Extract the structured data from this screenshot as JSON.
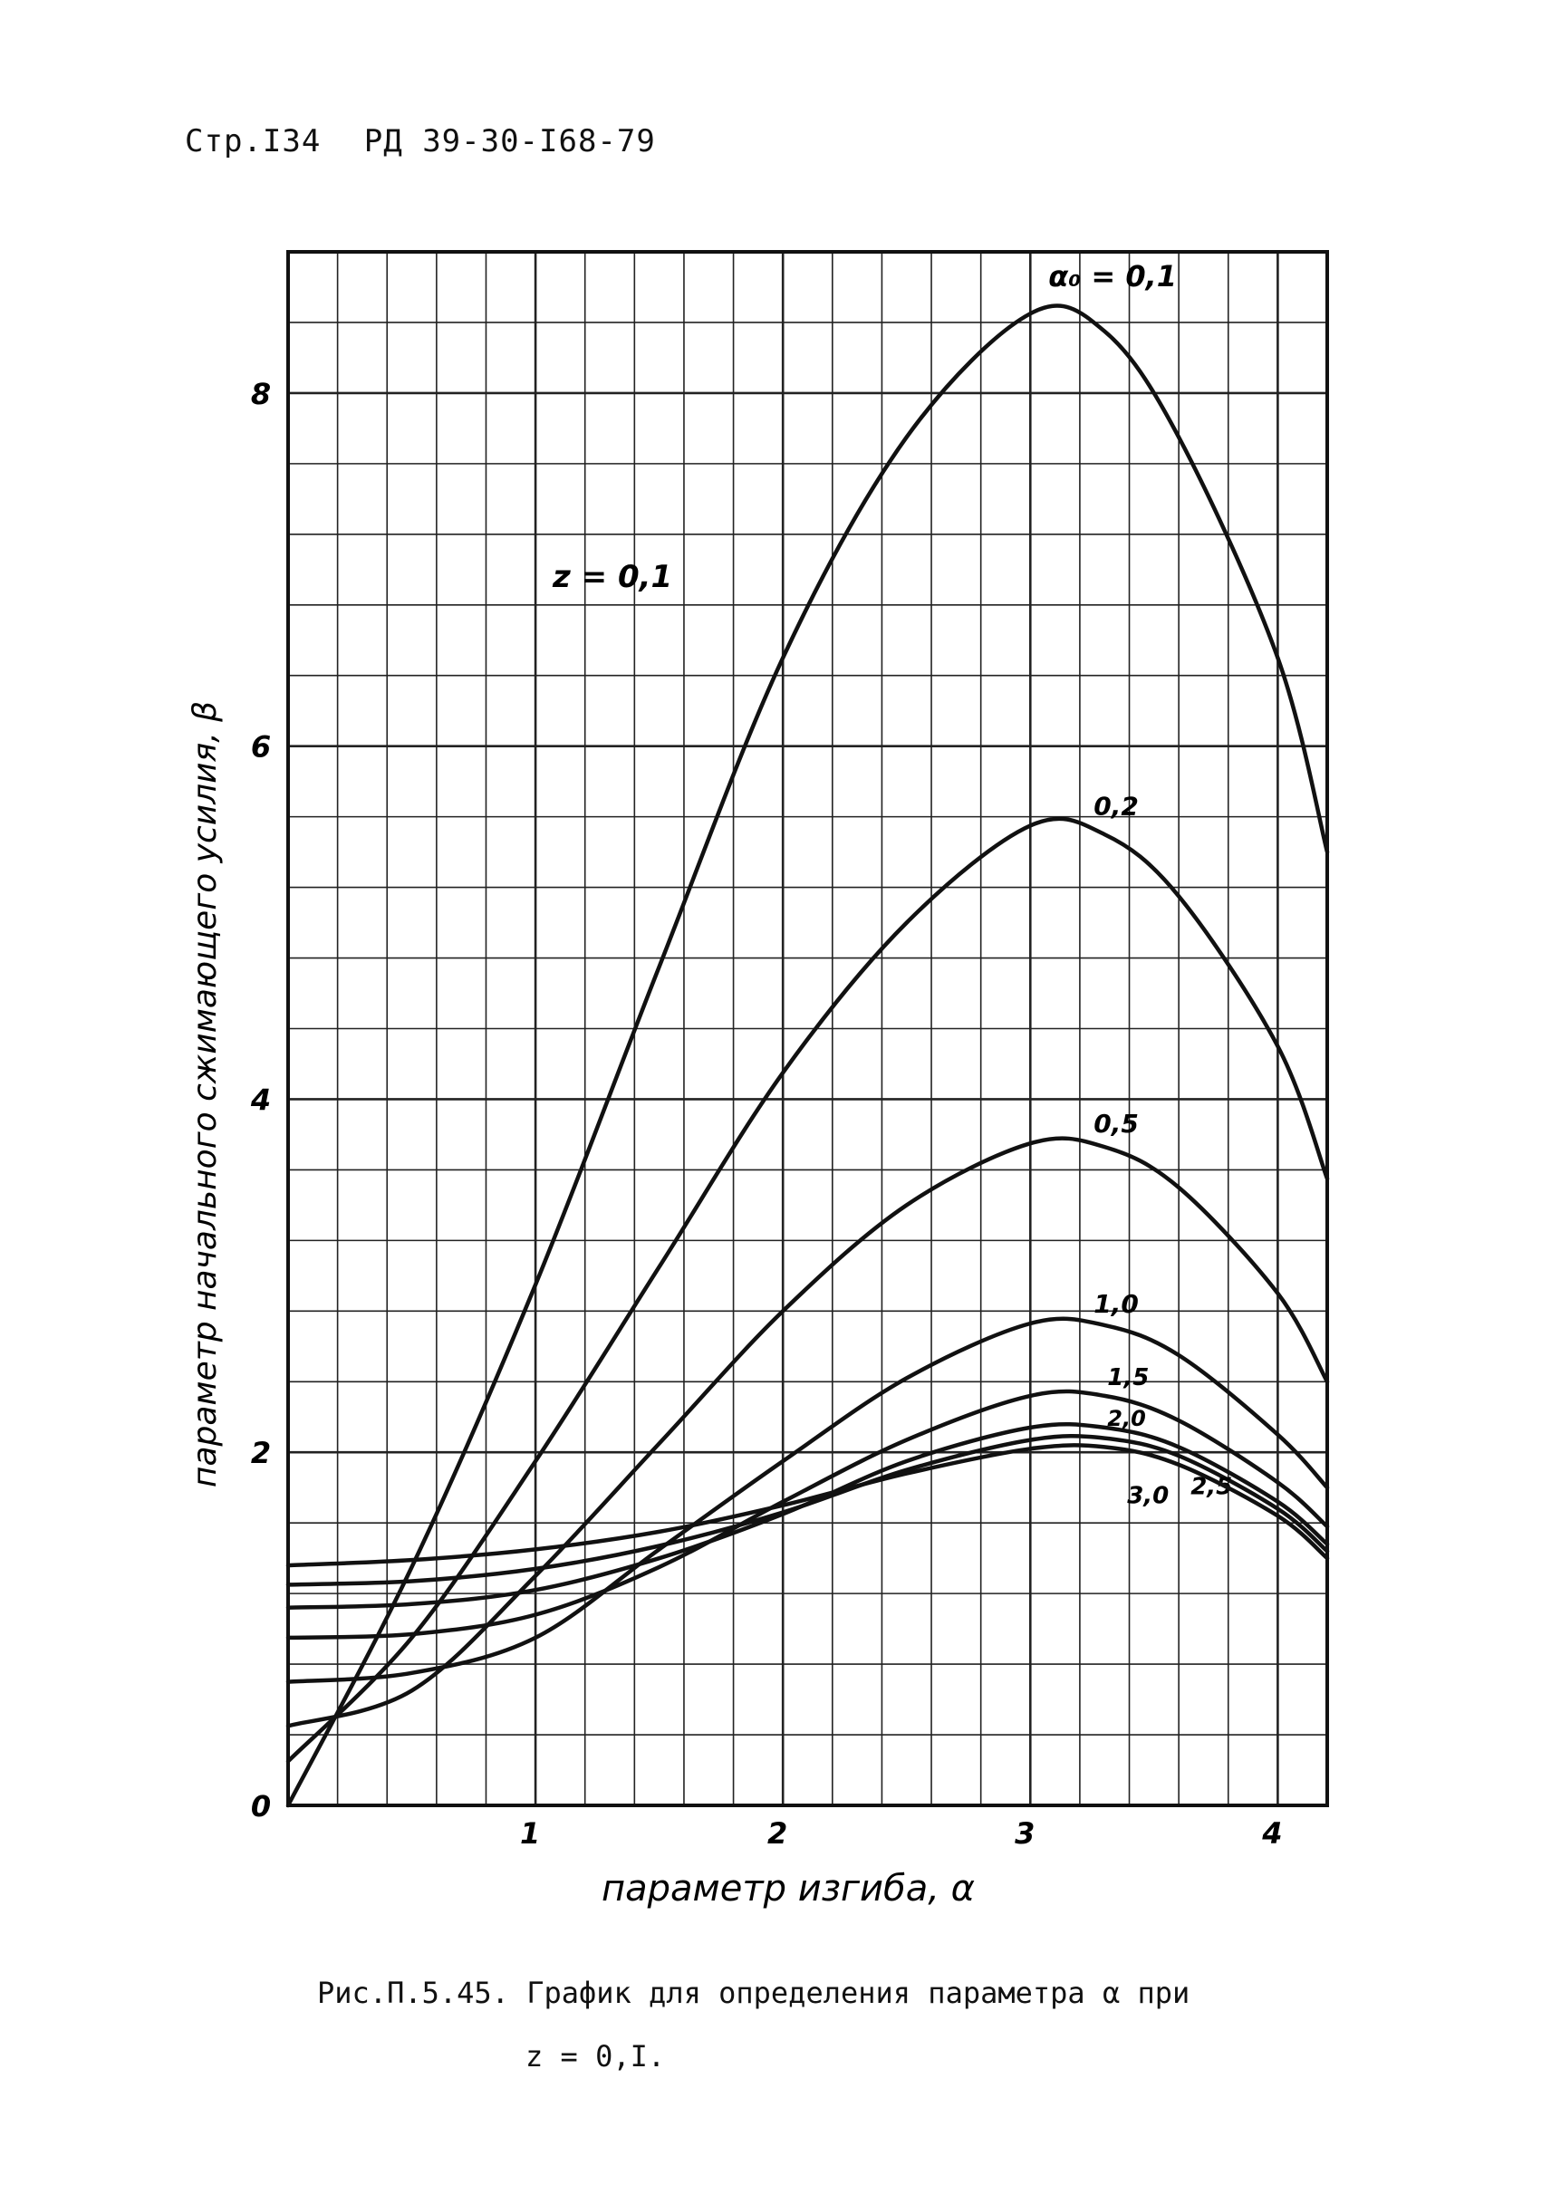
{
  "header": {
    "page": "Стр.I34",
    "doc": "РД 39-30-I68-79"
  },
  "caption": {
    "line1": "Рис.П.5.45. График для определения параметра  α  при",
    "line2": "z = 0,I."
  },
  "chart_data": {
    "type": "line",
    "xlabel": "параметр изгиба, α",
    "ylabel": "параметр начального сжимающего усилия, β",
    "xlim": [
      0,
      4.2
    ],
    "ylim": [
      0,
      8.8
    ],
    "xticks": [
      1,
      2,
      3,
      4
    ],
    "xtick_labels": [
      "1",
      "2",
      "3",
      "4"
    ],
    "yticks": [
      0,
      2,
      4,
      6,
      8
    ],
    "ytick_labels": [
      "0",
      "2",
      "4",
      "6",
      "8"
    ],
    "grid": true,
    "annotation": "z = 0,1",
    "series": [
      {
        "name": "α₀ = 0,1",
        "x": [
          0,
          0.5,
          1,
          1.5,
          2,
          2.5,
          3,
          3.3,
          3.6,
          4,
          4.2
        ],
        "y": [
          0,
          1.35,
          2.95,
          4.75,
          6.5,
          7.75,
          8.45,
          8.35,
          7.75,
          6.5,
          5.4
        ]
      },
      {
        "name": "0,2",
        "x": [
          0,
          0.5,
          1,
          1.5,
          2,
          2.5,
          3,
          3.3,
          3.6,
          4,
          4.2
        ],
        "y": [
          0.25,
          0.95,
          1.95,
          3.05,
          4.15,
          5.0,
          5.55,
          5.5,
          5.15,
          4.3,
          3.55
        ]
      },
      {
        "name": "0,5",
        "x": [
          0,
          0.5,
          1,
          1.5,
          2,
          2.5,
          3,
          3.3,
          3.6,
          4,
          4.2
        ],
        "y": [
          0.45,
          0.65,
          1.3,
          2.05,
          2.8,
          3.4,
          3.75,
          3.73,
          3.5,
          2.9,
          2.4
        ]
      },
      {
        "name": "1,0",
        "x": [
          0,
          0.5,
          1,
          1.5,
          2,
          2.5,
          3,
          3.3,
          3.6,
          4,
          4.2
        ],
        "y": [
          0.7,
          0.75,
          0.95,
          1.45,
          1.95,
          2.42,
          2.73,
          2.72,
          2.55,
          2.1,
          1.8
        ]
      },
      {
        "name": "1,5",
        "x": [
          0,
          0.5,
          1,
          1.5,
          2,
          2.5,
          3,
          3.3,
          3.6,
          4,
          4.2
        ],
        "y": [
          0.95,
          0.97,
          1.08,
          1.35,
          1.72,
          2.07,
          2.32,
          2.32,
          2.18,
          1.83,
          1.58
        ]
      },
      {
        "name": "2,0",
        "x": [
          0,
          0.5,
          1,
          1.5,
          2,
          2.5,
          3,
          3.3,
          3.6,
          4,
          4.2
        ],
        "y": [
          1.12,
          1.14,
          1.22,
          1.4,
          1.65,
          1.95,
          2.14,
          2.14,
          2.03,
          1.72,
          1.48
        ]
      },
      {
        "name": "2,5",
        "x": [
          0,
          0.5,
          1,
          1.5,
          2,
          2.5,
          3,
          3.3,
          3.6,
          4,
          4.2
        ],
        "y": [
          1.25,
          1.27,
          1.34,
          1.47,
          1.66,
          1.9,
          2.07,
          2.08,
          1.98,
          1.68,
          1.44
        ]
      },
      {
        "name": "3,0",
        "x": [
          0,
          0.5,
          1,
          1.5,
          2,
          2.5,
          3,
          3.3,
          3.6,
          4,
          4.2
        ],
        "y": [
          1.36,
          1.39,
          1.45,
          1.55,
          1.7,
          1.88,
          2.02,
          2.03,
          1.93,
          1.64,
          1.4
        ]
      }
    ]
  }
}
